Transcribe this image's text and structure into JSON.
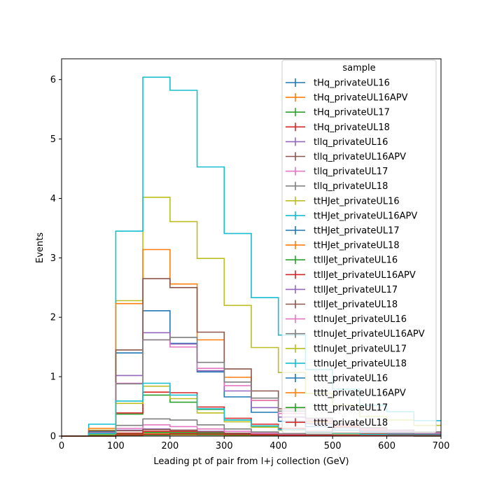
{
  "chart_data": {
    "type": "line",
    "drawstyle": "step",
    "xlabel": "Leading pt of pair from l+j collection (GeV)",
    "ylabel": "Events",
    "xlim": [
      0,
      700
    ],
    "ylim": [
      0,
      6.35
    ],
    "xticks": [
      0,
      100,
      200,
      300,
      400,
      500,
      600,
      700
    ],
    "yticks": [
      0,
      1,
      2,
      3,
      4,
      5,
      6
    ],
    "bin_edges": [
      0,
      50,
      100,
      150,
      200,
      250,
      300,
      350,
      400,
      450,
      500,
      550,
      600,
      650,
      700
    ],
    "legend": {
      "title": "sample",
      "position": "upper right"
    },
    "series": [
      {
        "name": "tHq_privateUL16",
        "color": "#1f77b4",
        "values": [
          0,
          0.01,
          0.03,
          0.05,
          0.05,
          0.04,
          0.03,
          0.02,
          0.01,
          0.01,
          0.005,
          0.005,
          0.003,
          0.002
        ]
      },
      {
        "name": "tHq_privateUL16APV",
        "color": "#ff7f0e",
        "values": [
          0,
          0.01,
          0.03,
          0.05,
          0.05,
          0.04,
          0.03,
          0.02,
          0.01,
          0.01,
          0.005,
          0.005,
          0.003,
          0.002
        ]
      },
      {
        "name": "tHq_privateUL17",
        "color": "#2ca02c",
        "values": [
          0,
          0.01,
          0.04,
          0.06,
          0.06,
          0.05,
          0.04,
          0.02,
          0.015,
          0.01,
          0.006,
          0.005,
          0.003,
          0.002
        ]
      },
      {
        "name": "tHq_privateUL18",
        "color": "#d62728",
        "values": [
          0,
          0.01,
          0.05,
          0.08,
          0.08,
          0.07,
          0.05,
          0.03,
          0.02,
          0.015,
          0.008,
          0.006,
          0.004,
          0.003
        ]
      },
      {
        "name": "tllq_privateUL16",
        "color": "#9467bd",
        "values": [
          0,
          0.03,
          0.1,
          0.12,
          0.1,
          0.08,
          0.05,
          0.03,
          0.02,
          0.01,
          0.008,
          0.005,
          0.004,
          0.003
        ]
      },
      {
        "name": "tllq_privateUL16APV",
        "color": "#8c564b",
        "values": [
          0,
          0.03,
          0.09,
          0.11,
          0.1,
          0.07,
          0.05,
          0.03,
          0.02,
          0.01,
          0.008,
          0.005,
          0.004,
          0.003
        ]
      },
      {
        "name": "tllq_privateUL17",
        "color": "#e377c2",
        "values": [
          0,
          0.04,
          0.13,
          0.19,
          0.16,
          0.12,
          0.08,
          0.05,
          0.03,
          0.02,
          0.012,
          0.008,
          0.005,
          0.004
        ]
      },
      {
        "name": "tllq_privateUL18",
        "color": "#7f7f7f",
        "values": [
          0,
          0.05,
          0.18,
          0.29,
          0.27,
          0.19,
          0.12,
          0.07,
          0.04,
          0.03,
          0.02,
          0.01,
          0.008,
          0.006
        ]
      },
      {
        "name": "ttHJet_privateUL16",
        "color": "#bcbd22",
        "values": [
          0,
          0.1,
          2.28,
          4.02,
          3.61,
          2.99,
          2.2,
          1.49,
          1.07,
          0.72,
          0.52,
          0.33,
          0.27,
          0.18
        ]
      },
      {
        "name": "ttHJet_privateUL16APV",
        "color": "#17becf",
        "values": [
          0,
          0.2,
          3.45,
          6.04,
          5.82,
          4.53,
          3.41,
          2.33,
          1.7,
          1.12,
          0.79,
          0.52,
          0.41,
          0.26
        ]
      },
      {
        "name": "ttHJet_privateUL17",
        "color": "#1f77b4",
        "values": [
          0,
          0.08,
          1.4,
          2.11,
          1.56,
          1.08,
          0.66,
          0.4,
          0.25,
          0.16,
          0.1,
          0.07,
          0.05,
          0.03
        ]
      },
      {
        "name": "ttHJet_privateUL18",
        "color": "#ff7f0e",
        "values": [
          0,
          0.13,
          2.23,
          3.14,
          2.56,
          1.62,
          0.99,
          0.6,
          0.38,
          0.24,
          0.16,
          0.1,
          0.07,
          0.05
        ]
      },
      {
        "name": "ttllJet_privateUL16",
        "color": "#2ca02c",
        "values": [
          0,
          0.02,
          0.37,
          0.69,
          0.57,
          0.45,
          0.27,
          0.17,
          0.11,
          0.07,
          0.05,
          0.03,
          0.02,
          0.015
        ]
      },
      {
        "name": "ttllJet_privateUL16APV",
        "color": "#d62728",
        "values": [
          0,
          0.03,
          0.39,
          0.74,
          0.73,
          0.49,
          0.3,
          0.2,
          0.13,
          0.08,
          0.06,
          0.04,
          0.03,
          0.02
        ]
      },
      {
        "name": "ttllJet_privateUL17",
        "color": "#9467bd",
        "values": [
          0,
          0.06,
          1.02,
          1.74,
          1.55,
          1.1,
          0.76,
          0.48,
          0.32,
          0.21,
          0.14,
          0.09,
          0.07,
          0.05
        ]
      },
      {
        "name": "ttllJet_privateUL18",
        "color": "#8c564b",
        "values": [
          0,
          0.09,
          1.45,
          2.65,
          2.5,
          1.75,
          1.13,
          0.76,
          0.46,
          0.3,
          0.21,
          0.14,
          0.1,
          0.07
        ]
      },
      {
        "name": "ttlnuJet_privateUL16",
        "color": "#e377c2",
        "values": [
          0,
          0.04,
          0.89,
          1.62,
          1.5,
          1.14,
          0.85,
          0.6,
          0.38,
          0.27,
          0.18,
          0.12,
          0.09,
          0.06
        ]
      },
      {
        "name": "ttlnuJet_privateUL16APV",
        "color": "#7f7f7f",
        "values": [
          0,
          0.05,
          0.88,
          1.62,
          1.66,
          1.24,
          0.91,
          0.64,
          0.42,
          0.3,
          0.2,
          0.14,
          0.1,
          0.07
        ]
      },
      {
        "name": "ttlnuJet_privateUL17",
        "color": "#bcbd22",
        "values": [
          0,
          0.03,
          0.55,
          0.84,
          0.63,
          0.39,
          0.24,
          0.15,
          0.1,
          0.06,
          0.04,
          0.03,
          0.02,
          0.015
        ]
      },
      {
        "name": "ttlnuJet_privateUL18",
        "color": "#17becf",
        "values": [
          0,
          0.04,
          0.59,
          0.89,
          0.69,
          0.46,
          0.27,
          0.17,
          0.11,
          0.07,
          0.05,
          0.03,
          0.02,
          0.015
        ]
      },
      {
        "name": "tttt_privateUL16",
        "color": "#1f77b4",
        "values": [
          0,
          0.0,
          0.01,
          0.02,
          0.02,
          0.02,
          0.015,
          0.01,
          0.01,
          0.008,
          0.006,
          0.005,
          0.004,
          0.003
        ]
      },
      {
        "name": "tttt_privateUL16APV",
        "color": "#ff7f0e",
        "values": [
          0,
          0.0,
          0.01,
          0.02,
          0.02,
          0.02,
          0.015,
          0.01,
          0.01,
          0.008,
          0.006,
          0.005,
          0.004,
          0.003
        ]
      },
      {
        "name": "tttt_privateUL17",
        "color": "#2ca02c",
        "values": [
          0,
          0.0,
          0.01,
          0.02,
          0.03,
          0.025,
          0.02,
          0.015,
          0.012,
          0.01,
          0.008,
          0.006,
          0.005,
          0.004
        ]
      },
      {
        "name": "tttt_privateUL18",
        "color": "#d62728",
        "values": [
          0,
          0.0,
          0.02,
          0.03,
          0.04,
          0.035,
          0.03,
          0.02,
          0.015,
          0.012,
          0.01,
          0.008,
          0.006,
          0.005
        ]
      }
    ]
  }
}
